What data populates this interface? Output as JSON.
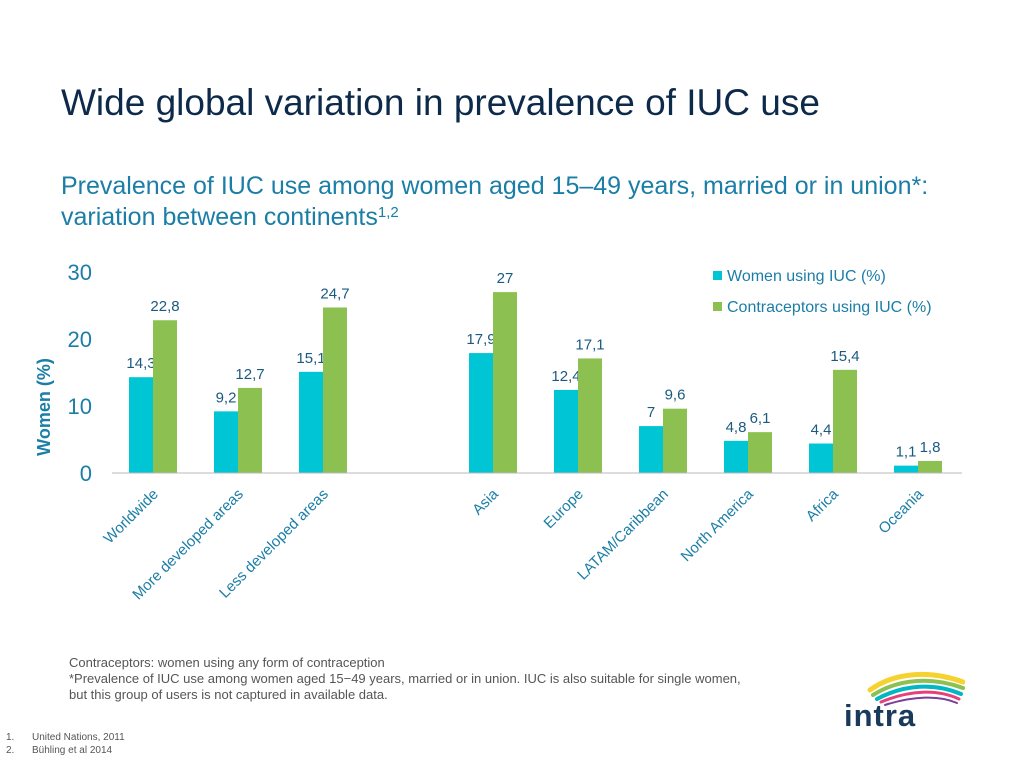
{
  "title": "Wide global variation in prevalence of IUC use",
  "subtitle": {
    "text": "Prevalence of IUC use among women aged 15–49 years, married or in union*: variation between continents",
    "superscript": "1,2"
  },
  "chart_data": {
    "type": "bar",
    "ylabel": "Women (%)",
    "ylim": [
      0,
      30
    ],
    "yticks": [
      "0",
      "10",
      "20",
      "30"
    ],
    "categories": [
      "Worldwide",
      "More developed areas",
      "Less developed areas",
      "",
      "Asia",
      "Europe",
      "LATAM/Caribbean",
      "North America",
      "Africa",
      "Oceania"
    ],
    "series": [
      {
        "name": "Women using IUC (%)",
        "color": "#00c5d4",
        "values": [
          14.3,
          9.2,
          15.1,
          null,
          17.9,
          12.4,
          7,
          4.8,
          4.4,
          1.1
        ],
        "labels": [
          "14,3",
          "9,2",
          "15,1",
          "",
          "17,9",
          "12,4",
          "7",
          "4,8",
          "4,4",
          "1,1"
        ]
      },
      {
        "name": "Contraceptors using IUC (%)",
        "color": "#8cc152",
        "values": [
          22.8,
          12.7,
          24.7,
          null,
          27,
          17.1,
          9.6,
          6.1,
          15.4,
          1.8
        ],
        "labels": [
          "22,8",
          "12,7",
          "24,7",
          "",
          "27",
          "17,1",
          "9,6",
          "6,1",
          "15,4",
          "1,8"
        ]
      }
    ],
    "legend_position": "top-right"
  },
  "footnotes": {
    "line1": "Contraceptors: women using any form of contraception",
    "line2": "*Prevalence of IUC use among women aged 15−49 years, married or in union. IUC is also suitable for single women,",
    "line3": "but this group of users is not captured in available data."
  },
  "references": [
    {
      "num": "1.",
      "text": "United Nations, 2011"
    },
    {
      "num": "2.",
      "text": "Bühling et al 2014"
    }
  ],
  "logo": {
    "text": "intra"
  },
  "colors": {
    "title": "#0d2a4a",
    "accent": "#1b7ea6",
    "axis": "#1b7ea6"
  }
}
